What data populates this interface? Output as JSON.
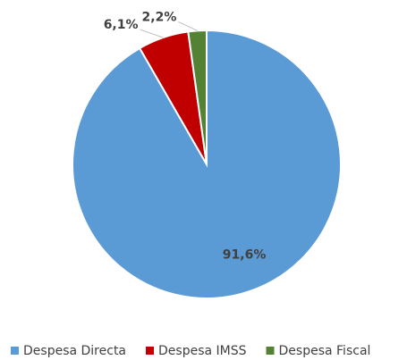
{
  "chart_data": {
    "type": "pie",
    "categories": [
      "Despesa Directa",
      "Despesa IMSS",
      "Despesa Fiscal"
    ],
    "values": [
      91.6,
      6.1,
      2.2
    ],
    "value_labels": [
      "91,6%",
      "6,1%",
      "2,2%"
    ],
    "colors": [
      "#5b9bd5",
      "#c00000",
      "#548235"
    ],
    "legend": "bottom"
  }
}
